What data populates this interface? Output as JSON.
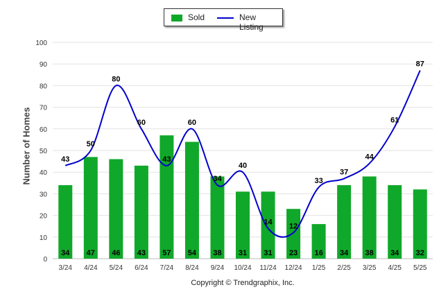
{
  "chart_data": {
    "type": "bar",
    "categories": [
      "3/24",
      "4/24",
      "5/24",
      "6/24",
      "7/24",
      "8/24",
      "9/24",
      "10/24",
      "11/24",
      "12/24",
      "1/25",
      "2/25",
      "3/25",
      "4/25",
      "5/25"
    ],
    "series": [
      {
        "name": "Sold",
        "type": "bar",
        "color": "#10a82a",
        "values": [
          34,
          47,
          46,
          43,
          57,
          54,
          38,
          31,
          31,
          23,
          16,
          34,
          38,
          34,
          32
        ]
      },
      {
        "name": "New Listing",
        "type": "line",
        "color": "#0000cc",
        "values": [
          43,
          50,
          80,
          60,
          43,
          60,
          34,
          40,
          14,
          12,
          33,
          37,
          44,
          61,
          87
        ]
      }
    ],
    "ylabel": "Number of Homes",
    "ylim": [
      0,
      100
    ],
    "yticks": [
      0,
      10,
      20,
      30,
      40,
      50,
      60,
      70,
      80,
      90,
      100
    ],
    "grid": true,
    "legend": "top-center"
  },
  "legend": {
    "sold": "Sold",
    "new_listing": "New Listing"
  },
  "footer": "Copyright © Trendgraphix, Inc."
}
